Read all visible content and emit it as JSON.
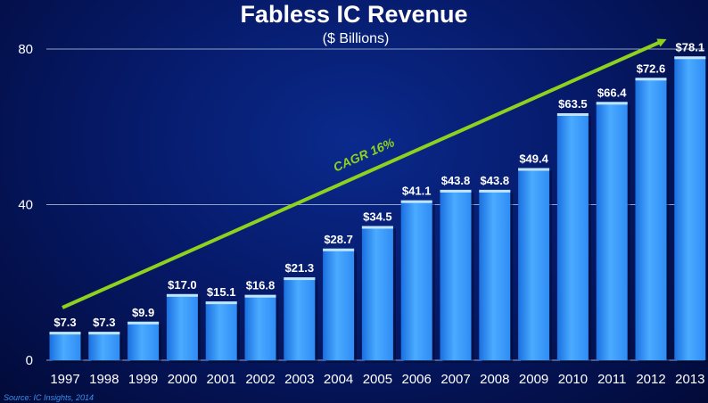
{
  "chart_data": {
    "type": "bar",
    "title": "Fabless IC Revenue",
    "subtitle": "($ Billions)",
    "categories": [
      "1997",
      "1998",
      "1999",
      "2000",
      "2001",
      "2002",
      "2003",
      "2004",
      "2005",
      "2006",
      "2007",
      "2008",
      "2009",
      "2010",
      "2011",
      "2012",
      "2013"
    ],
    "values": [
      7.3,
      7.3,
      9.9,
      17.0,
      15.1,
      16.8,
      21.3,
      28.7,
      34.5,
      41.1,
      43.8,
      43.8,
      49.4,
      63.5,
      66.4,
      72.6,
      78.1
    ],
    "data_labels": [
      "$7.3",
      "$7.3",
      "$9.9",
      "$17.0",
      "$15.1",
      "$16.8",
      "$21.3",
      "$28.7",
      "$34.5",
      "$41.1",
      "$43.8",
      "$43.8",
      "$49.4",
      "$63.5",
      "$66.4",
      "$72.6",
      "$78.1"
    ],
    "yticks": [
      0,
      40,
      80
    ],
    "ylim": [
      0,
      80
    ],
    "grid": true,
    "annotation": "CAGR 16%",
    "source": "Source: IC Insights, 2014",
    "colors": {
      "bar": "#3399ff",
      "bar_light": "#66c2ff",
      "bar_dark": "#1a5fd0",
      "trend": "#8fd21e",
      "grid": "#8fa3c8"
    }
  }
}
